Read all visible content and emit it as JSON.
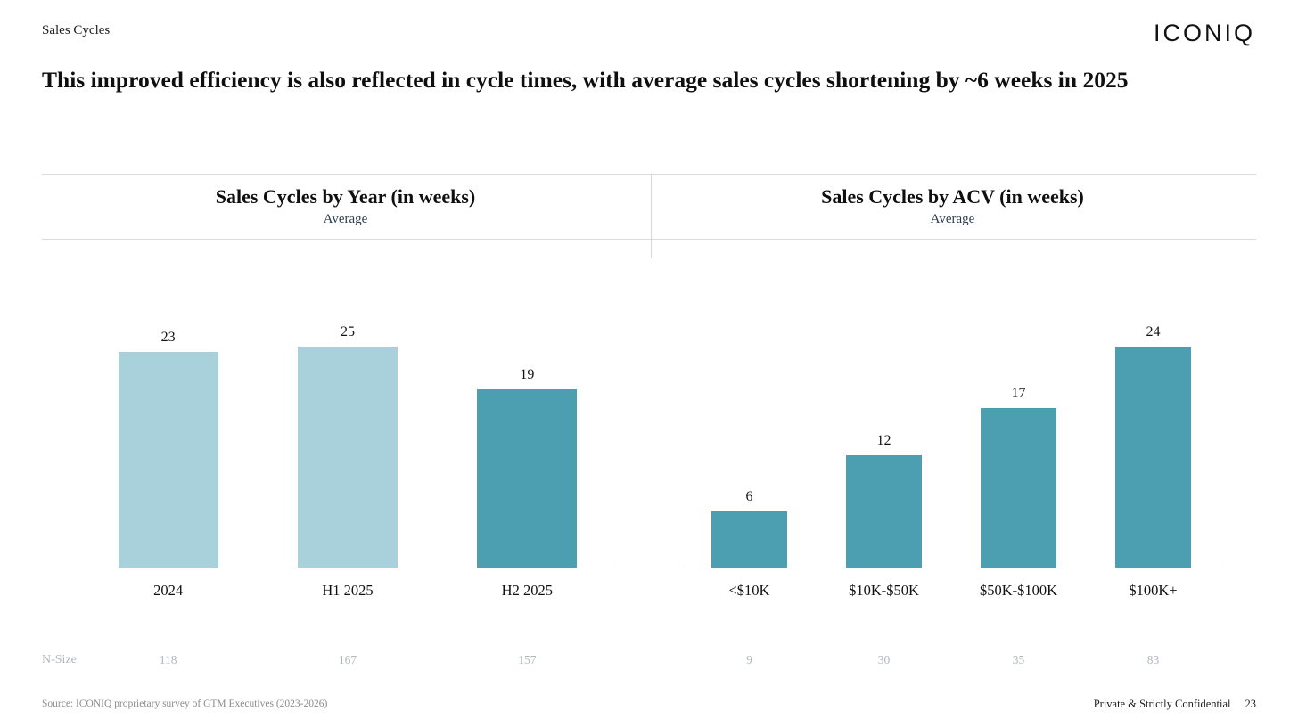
{
  "slide": {
    "eyebrow": "Sales Cycles",
    "logo": "ICONIQ",
    "title": "This improved efficiency is also reflected in cycle times, with average sales cycles shortening by ~6 weeks in 2025",
    "n_size_label": "N-Size",
    "footer": {
      "source": "Source: ICONIQ proprietary survey of GTM Executives (2023-2026)",
      "confidential": "Private & Strictly Confidential",
      "page_number": "23"
    }
  },
  "colors": {
    "light_bar": "#a9d1dc",
    "dark_bar": "#4c9fb1",
    "subtitle_text": "#2e3d52",
    "nsize_text": "#b2b6bc",
    "rule_line": "#dadada"
  },
  "chart_data": [
    {
      "type": "bar",
      "title": "Sales Cycles by Year (in weeks)",
      "subtitle": "Average",
      "categories": [
        "2024",
        "H1 2025",
        "H2 2025"
      ],
      "values": [
        23,
        25,
        19
      ],
      "n_sizes": [
        118,
        167,
        157
      ],
      "bar_colors": [
        "#a9d1dc",
        "#a9d1dc",
        "#4c9fb1"
      ],
      "ylim": [
        0,
        26
      ],
      "value_labels": true,
      "grid": false,
      "legend": false
    },
    {
      "type": "bar",
      "title": "Sales Cycles by ACV (in weeks)",
      "subtitle": "Average",
      "categories": [
        "<$10K",
        "$10K-$50K",
        "$50K-$100K",
        "$100K+"
      ],
      "values": [
        6,
        12,
        17,
        24
      ],
      "n_sizes": [
        9,
        30,
        35,
        83
      ],
      "bar_colors": [
        "#4c9fb1",
        "#4c9fb1",
        "#4c9fb1",
        "#4c9fb1"
      ],
      "ylim": [
        0,
        26
      ],
      "value_labels": true,
      "grid": false,
      "legend": false
    }
  ]
}
